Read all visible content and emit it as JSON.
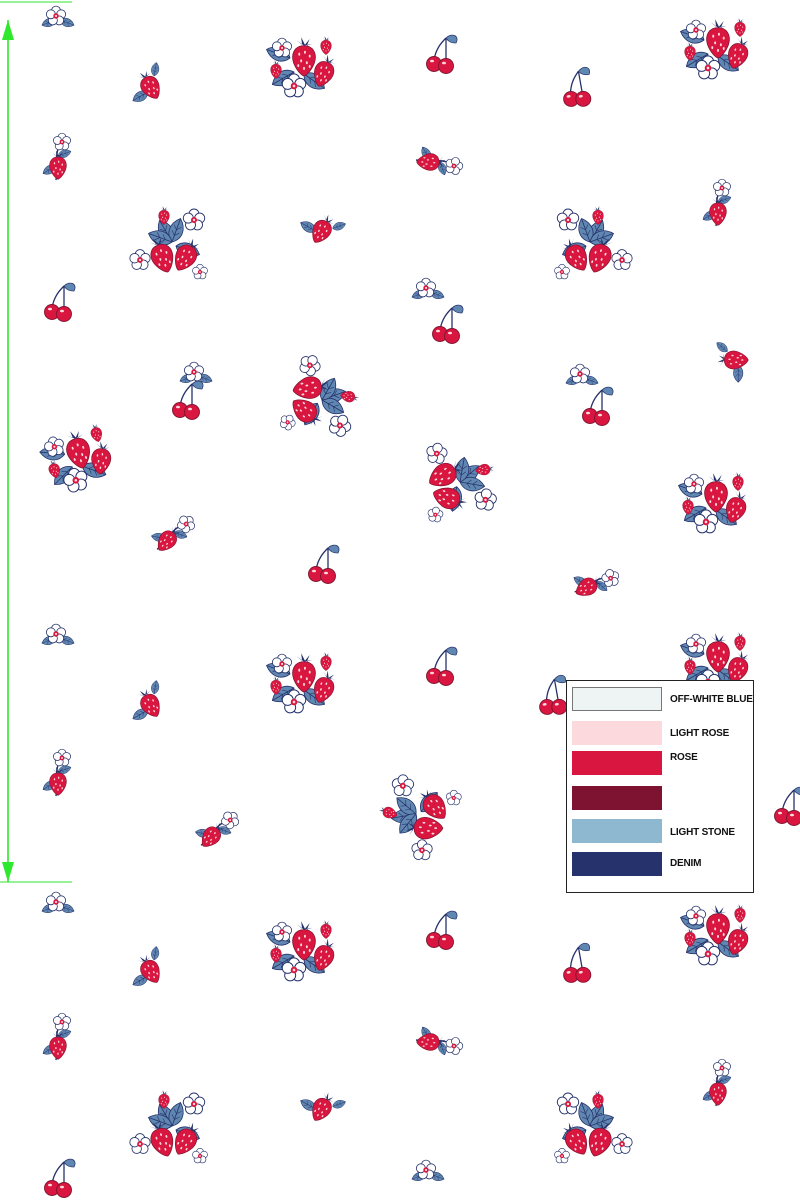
{
  "palette": {
    "off_white_blue": "#eef3f4",
    "light_rose": "#fcd9dc",
    "rose": "#d9163f",
    "burgundy": "#7d1330",
    "light_stone": "#8db8cf",
    "denim": "#26326b",
    "leaf_blue": "#5f87b1",
    "guide_green": "#2ee82e"
  },
  "legend": {
    "items": [
      {
        "label": "OFF-WHITE BLUE",
        "color": "#eef3f4",
        "outlined": true
      },
      {
        "label": "LIGHT ROSE",
        "color": "#fcd9dc",
        "outlined": false
      },
      {
        "label": "ROSE",
        "color": "#d9163f",
        "outlined": false
      },
      {
        "label": "",
        "color": "#7d1330",
        "outlined": false
      },
      {
        "label": "LIGHT STONE",
        "color": "#8db8cf",
        "outlined": false
      },
      {
        "label": "DENIM",
        "color": "#26326b",
        "outlined": false
      }
    ]
  },
  "motif_types": [
    "strawberry-bouquet",
    "large-strawberry-cluster",
    "cherry-pair",
    "single-strawberry",
    "flower-sprig"
  ]
}
